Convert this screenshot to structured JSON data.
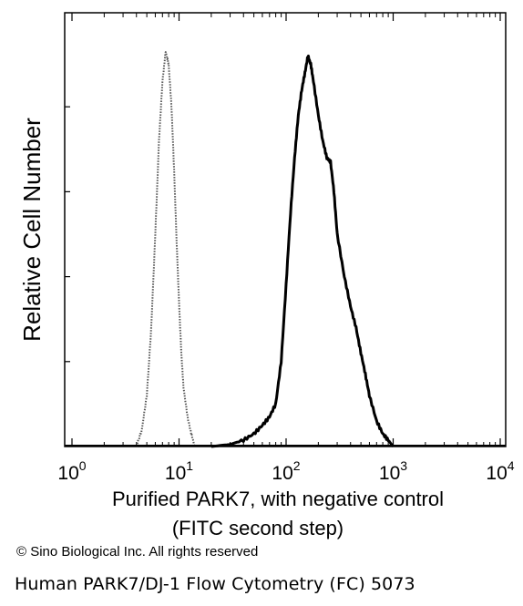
{
  "chart_data": {
    "type": "line",
    "ylabel": "Relative Cell Number",
    "xlabel_line1": "Purified PARK7, with negative control",
    "xlabel_line2": "(FITC second step)",
    "x_scale": "log",
    "xlim": [
      1,
      15000
    ],
    "ylim": [
      0,
      100
    ],
    "x_ticks": [
      {
        "base": "10",
        "exp": "0",
        "value": 1
      },
      {
        "base": "10",
        "exp": "1",
        "value": 10
      },
      {
        "base": "10",
        "exp": "2",
        "value": 100
      },
      {
        "base": "10",
        "exp": "3",
        "value": 1000
      },
      {
        "base": "10",
        "exp": "4",
        "value": 10000
      }
    ],
    "y_ticks": [
      20,
      40,
      60,
      80
    ],
    "grid": false,
    "legend": "none",
    "series": [
      {
        "style": "dotted",
        "color": "#555555",
        "x": [
          4.0,
          4.5,
          5.0,
          5.5,
          6.0,
          6.5,
          7.0,
          7.5,
          8.0,
          8.5,
          9.0,
          9.5,
          10.0,
          10.5,
          11.0,
          12.0,
          13.0,
          14.0
        ],
        "y": [
          0,
          4,
          12,
          28,
          50,
          72,
          86,
          93,
          90,
          80,
          65,
          48,
          34,
          22,
          14,
          7,
          3,
          0
        ]
      },
      {
        "style": "solid",
        "color": "#000000",
        "x": [
          20,
          30,
          40,
          50,
          60,
          70,
          80,
          90,
          100,
          110,
          120,
          130,
          140,
          150,
          160,
          170,
          180,
          200,
          220,
          240,
          260,
          280,
          300,
          350,
          400,
          450,
          500,
          550,
          600,
          700,
          800,
          900,
          1000
        ],
        "y": [
          0,
          0.5,
          1.5,
          3,
          5,
          7,
          10,
          20,
          38,
          55,
          68,
          78,
          84,
          88,
          92,
          90,
          86,
          78,
          72,
          68,
          67,
          60,
          50,
          40,
          33,
          28,
          22,
          17,
          12,
          6,
          3,
          1.5,
          0
        ]
      }
    ]
  },
  "copyright": "© Sino Biological Inc. All rights reserved",
  "caption": "Human PARK7/DJ-1 Flow Cytometry (FC) 5073"
}
